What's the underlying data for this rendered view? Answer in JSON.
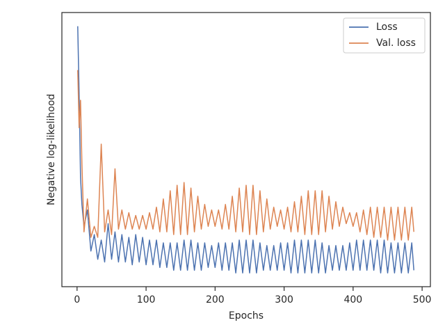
{
  "chart_data": {
    "type": "line",
    "xlabel": "Epochs",
    "ylabel": "Negative log-likelihood",
    "x": [
      1,
      3,
      5,
      7,
      10,
      15,
      20,
      25,
      30,
      35,
      40,
      45,
      50,
      55,
      60,
      65,
      70,
      75,
      80,
      85,
      90,
      95,
      100,
      105,
      110,
      115,
      120,
      125,
      130,
      135,
      140,
      145,
      150,
      155,
      160,
      165,
      170,
      175,
      180,
      185,
      190,
      195,
      200,
      205,
      210,
      215,
      220,
      225,
      230,
      235,
      240,
      245,
      250,
      255,
      260,
      265,
      270,
      275,
      280,
      285,
      290,
      295,
      300,
      305,
      310,
      315,
      320,
      325,
      330,
      335,
      340,
      345,
      350,
      355,
      360,
      365,
      370,
      375,
      380,
      385,
      390,
      395,
      400,
      405,
      410,
      415,
      420,
      425,
      430,
      435,
      440,
      445,
      450,
      455,
      460,
      465,
      470,
      475,
      480,
      485,
      488
    ],
    "series": [
      {
        "name": "Loss",
        "color": "#4c72b0",
        "values": [
          95,
          70,
          40,
          30,
          22,
          28,
          13,
          19,
          10,
          17,
          9,
          23,
          10,
          20,
          9,
          19,
          9,
          18,
          8,
          19,
          9,
          18,
          8,
          17,
          8,
          17,
          7,
          16,
          7,
          16,
          6,
          16,
          6,
          17,
          6,
          17,
          6,
          16,
          6,
          16,
          7,
          15,
          7,
          16,
          6,
          16,
          6,
          16,
          5,
          17,
          5,
          17,
          5,
          17,
          5,
          16,
          6,
          15,
          6,
          15,
          6,
          16,
          6,
          16,
          5,
          17,
          5,
          17,
          5,
          17,
          5,
          17,
          5,
          16,
          5,
          15,
          6,
          15,
          6,
          15,
          6,
          16,
          6,
          17,
          6,
          17,
          6,
          17,
          6,
          17,
          5,
          17,
          5,
          16,
          5,
          16,
          5,
          16,
          5,
          16,
          6
        ]
      },
      {
        "name": "Val. loss",
        "color": "#dd8452",
        "values": [
          79,
          58,
          68,
          45,
          20,
          32,
          18,
          22,
          18,
          52,
          20,
          28,
          19,
          43,
          21,
          28,
          21,
          27,
          21,
          26,
          21,
          26,
          21,
          27,
          21,
          29,
          20,
          32,
          20,
          35,
          19,
          37,
          19,
          38,
          19,
          36,
          20,
          33,
          21,
          30,
          22,
          28,
          22,
          28,
          21,
          30,
          21,
          33,
          20,
          36,
          20,
          37,
          19,
          37,
          19,
          35,
          20,
          32,
          21,
          29,
          22,
          28,
          21,
          29,
          20,
          31,
          20,
          33,
          19,
          35,
          19,
          35,
          19,
          35,
          20,
          33,
          21,
          31,
          22,
          29,
          23,
          27,
          22,
          27,
          20,
          28,
          19,
          29,
          18,
          29,
          18,
          29,
          17,
          29,
          17,
          29,
          17,
          29,
          17,
          29,
          20
        ]
      }
    ],
    "xlim": [
      -22,
      512
    ],
    "ylim": [
      0,
      100
    ],
    "xticks": [
      0,
      100,
      200,
      300,
      400,
      500
    ],
    "legend": "upper right"
  }
}
